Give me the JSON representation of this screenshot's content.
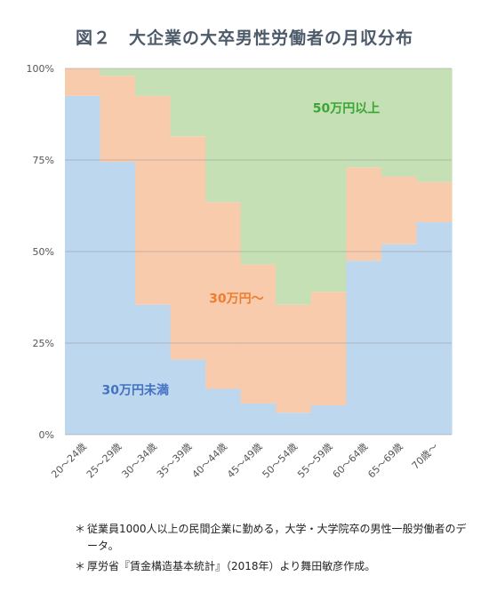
{
  "page": {
    "title": "図２　大企業の大卒男性労働者の月収分布",
    "notes": [
      {
        "mark": "＊",
        "text": "従業員1000人以上の民間企業に勤める，大学・大学院卒の男性一般労働者のデータ。"
      },
      {
        "mark": "＊",
        "text": "厚労省『賃金構造基本統計』（2018年）より舞田敏彦作成。"
      }
    ]
  },
  "chart_data": {
    "type": "area",
    "stacked": true,
    "percent": true,
    "categories": [
      "20～24歳",
      "25～29歳",
      "30～34歳",
      "35～39歳",
      "40～44歳",
      "45～49歳",
      "50～54歳",
      "55～59歳",
      "60～64歳",
      "65～69歳",
      "70歳～"
    ],
    "series": [
      {
        "name": "30万円未満",
        "color": "#bdd7ee",
        "labelColor": "#4472c4",
        "values": [
          92.5,
          74.5,
          35.5,
          20.5,
          12.5,
          8.5,
          6.0,
          8.0,
          47.5,
          52.0,
          58.0
        ]
      },
      {
        "name": "30万円～",
        "color": "#f8cbad",
        "labelColor": "#ed7d31",
        "values": [
          7.5,
          23.5,
          57.0,
          61.0,
          51.0,
          38.0,
          29.5,
          31.0,
          25.5,
          18.5,
          11.0
        ]
      },
      {
        "name": "50万円以上",
        "color": "#c5e0b4",
        "labelColor": "#3aa635",
        "values": [
          0.0,
          2.0,
          7.5,
          18.5,
          36.5,
          53.5,
          64.5,
          61.0,
          27.0,
          29.5,
          31.0
        ]
      }
    ],
    "yticks": [
      "0%",
      "25%",
      "50%",
      "75%",
      "100%"
    ],
    "ylim": [
      0,
      100
    ],
    "grid": true
  }
}
